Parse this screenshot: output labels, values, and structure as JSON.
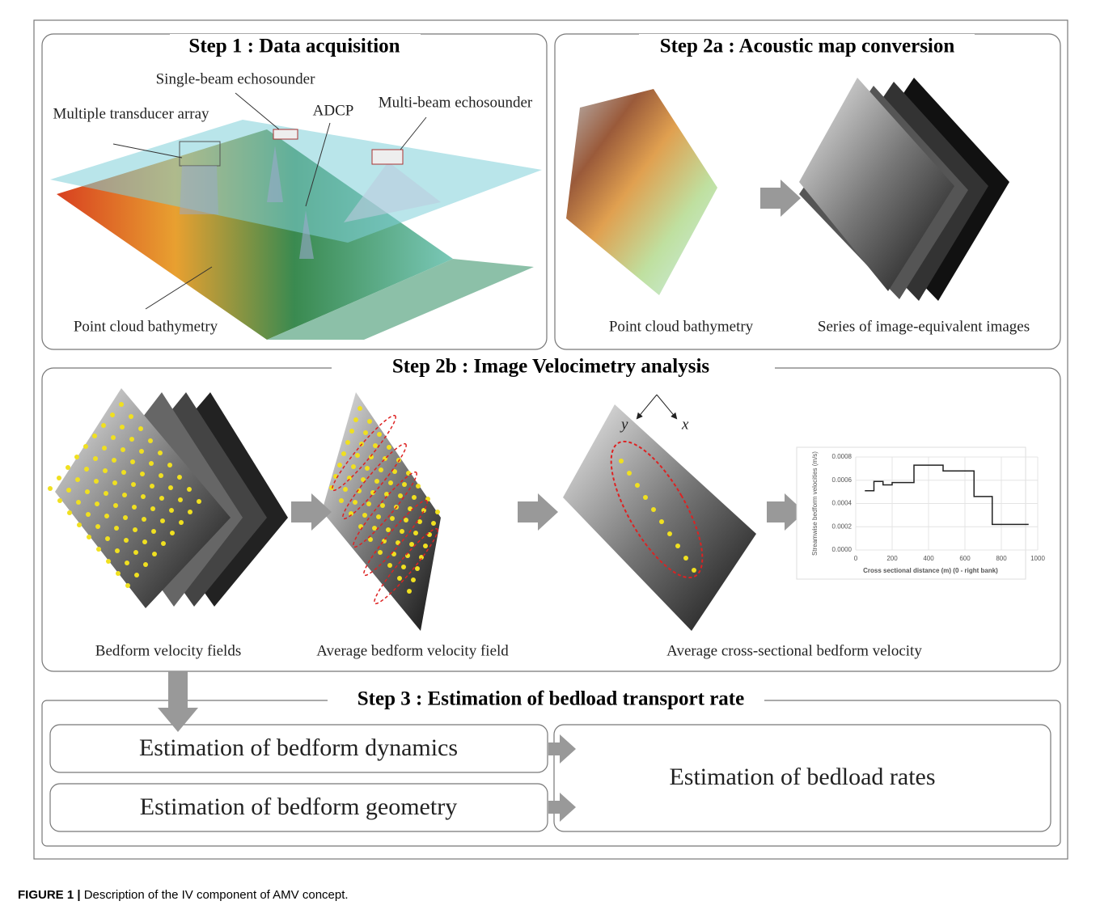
{
  "step1": {
    "title": "Step 1 : Data acquisition",
    "labels": [
      "Single-beam echosounder",
      "Multiple transducer array",
      "ADCP",
      "Multi-beam echosounder",
      "Point cloud bathymetry"
    ]
  },
  "step2a": {
    "title": "Step 2a : Acoustic map conversion",
    "labels": [
      "Point cloud bathymetry",
      "Series of image-equivalent images"
    ]
  },
  "step2b": {
    "title": "Step 2b : Image Velocimetry analysis",
    "labels": [
      "Bedform velocity fields",
      "Average bedform velocity field",
      "Average cross-sectional bedform velocity"
    ],
    "axes": [
      "y",
      "x"
    ],
    "inset_chart": {
      "type": "line",
      "y_label": "Streamwise bedform velocities (m/s)",
      "x_label": "Cross sectional distance (m) (0 - right bank)",
      "x": [
        50,
        100,
        100,
        150,
        150,
        200,
        200,
        320,
        320,
        480,
        480,
        650,
        650,
        750,
        750,
        950
      ],
      "values": [
        0.00051,
        0.00051,
        0.00059,
        0.00059,
        0.00056,
        0.00056,
        0.00058,
        0.00058,
        0.00073,
        0.00073,
        0.00068,
        0.00068,
        0.00046,
        0.00046,
        0.00022,
        0.00022
      ],
      "color": "#222",
      "xlim": [
        0,
        1000
      ],
      "ylim": [
        0,
        0.0008
      ],
      "xticks": [
        0,
        200,
        400,
        600,
        800,
        1000
      ],
      "yticks": [
        {
          "value": 0,
          "label": "0.0000"
        },
        {
          "value": 0.0002,
          "label": "0.0002"
        },
        {
          "value": 0.0004,
          "label": "0.0004"
        },
        {
          "value": 0.0006,
          "label": "0.0006"
        },
        {
          "value": 0.0008,
          "label": "0.0008"
        }
      ],
      "grid": true
    }
  },
  "step3": {
    "title": "Step 3 : Estimation of bedload transport rate",
    "boxes": [
      "Estimation of bedform dynamics",
      "Estimation of bedform geometry",
      "Estimation of bedload rates"
    ]
  },
  "caption": {
    "label": "FIGURE 1 |",
    "text": " Description of the IV component of AMV concept."
  }
}
